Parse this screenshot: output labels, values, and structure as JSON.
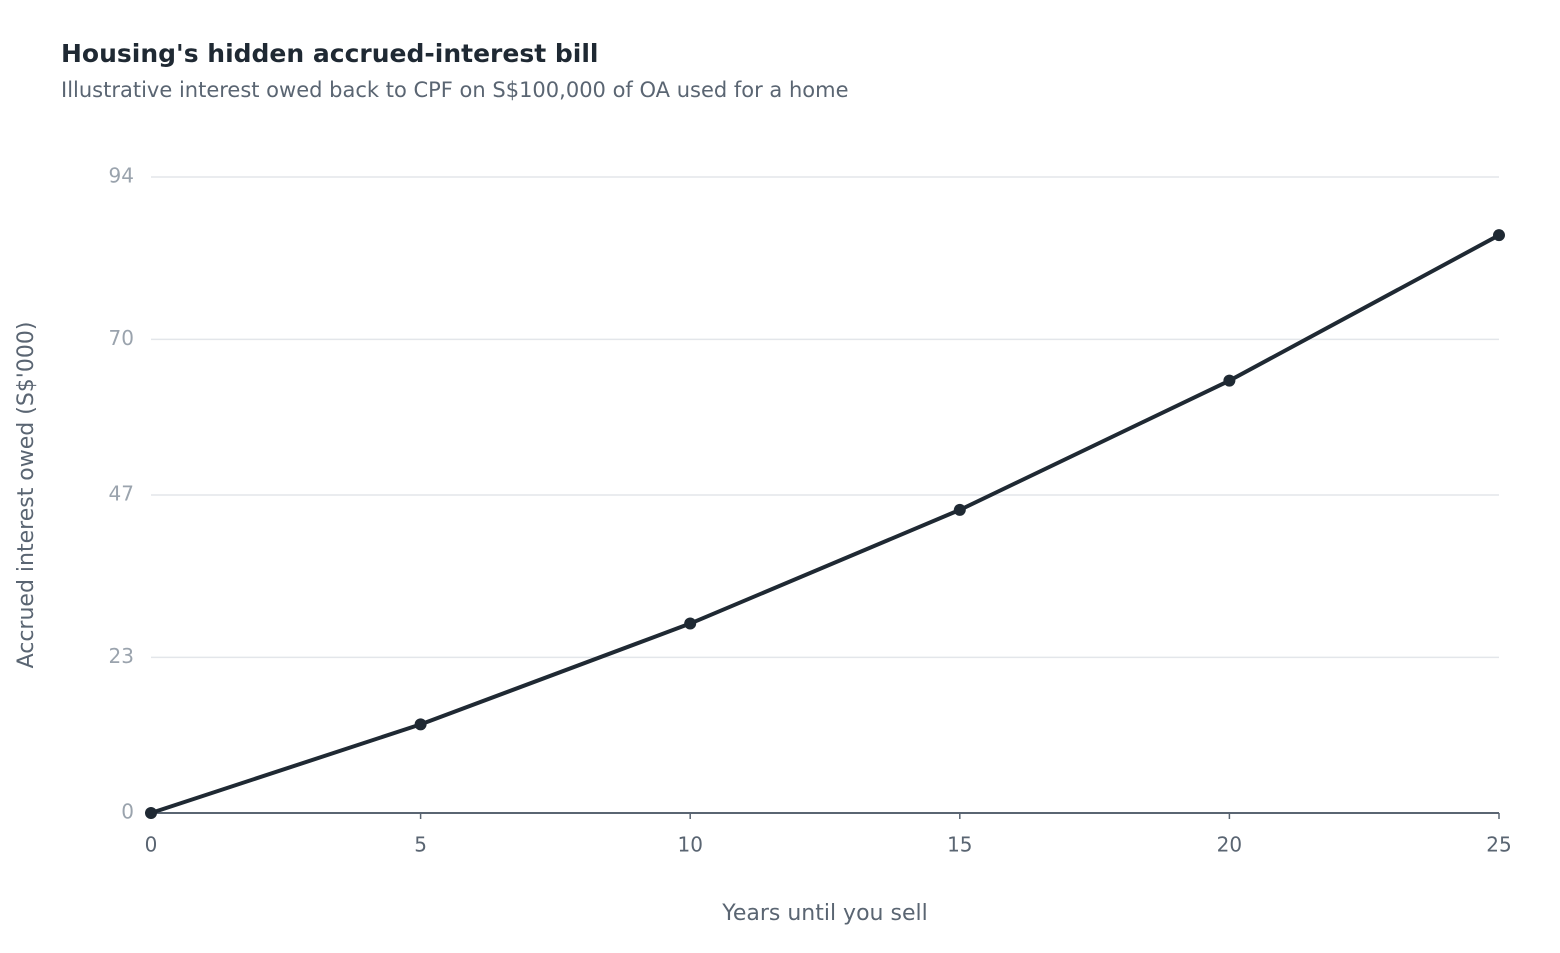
{
  "chart_data": {
    "type": "line",
    "title": "Housing's hidden accrued-interest bill",
    "subtitle": "Illustrative interest owed back to CPF on S$100,000 of OA used for a home",
    "x_label": "Years until you sell",
    "y_label": "Accrued interest owed (S$'000)",
    "x": [
      0,
      5,
      10,
      15,
      20,
      25
    ],
    "series": [
      {
        "color": "#1f2933",
        "values": [
          0,
          13.1,
          28.0,
          44.8,
          63.9,
          85.4
        ]
      }
    ],
    "xlim": [
      0,
      25
    ],
    "xticks": [
      0,
      5,
      10,
      15,
      20,
      25
    ],
    "ylim": [
      0,
      94
    ],
    "yticks": [
      0,
      23,
      47,
      70,
      94
    ],
    "grid": true
  }
}
